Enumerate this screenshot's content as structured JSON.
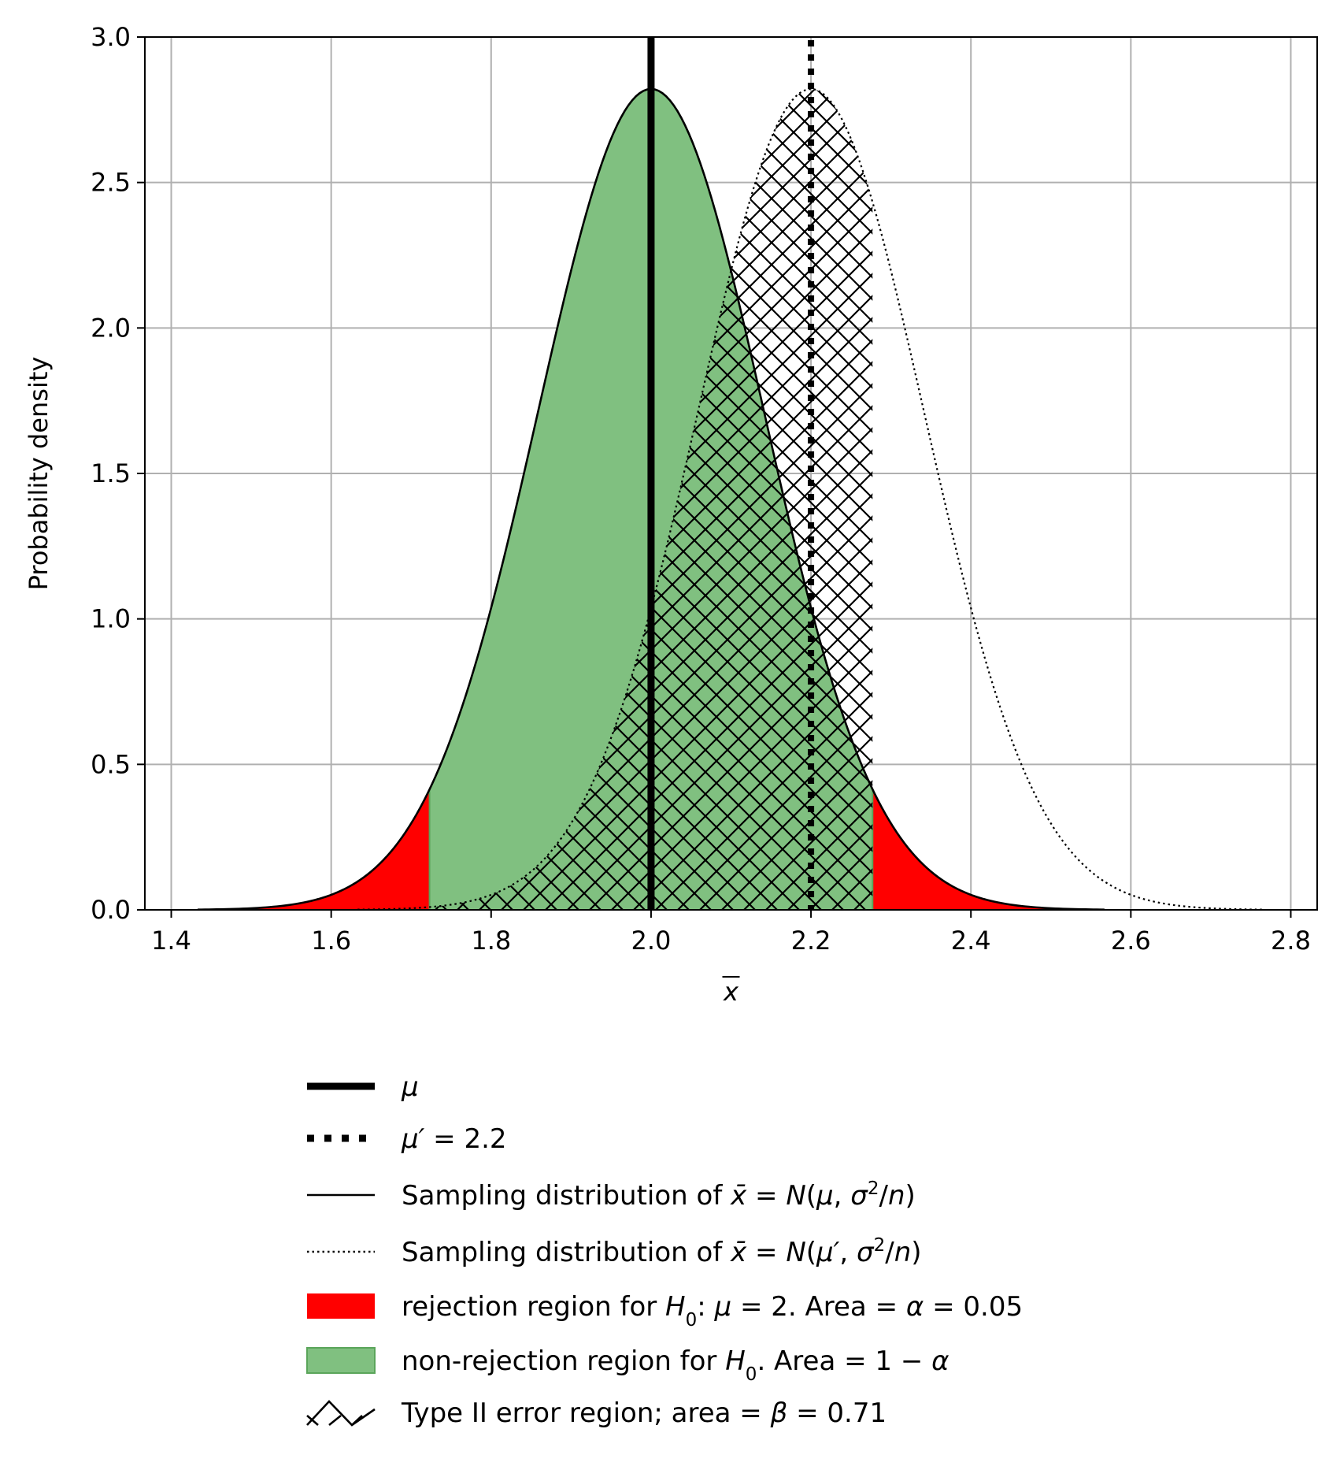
{
  "chart_data": {
    "type": "area",
    "xlabel_symbol": "x",
    "ylabel": "Probability density",
    "xlim": [
      1.367,
      2.833
    ],
    "ylim": [
      0,
      3.0
    ],
    "x_ticks": [
      "1.4",
      "1.6",
      "1.8",
      "2.0",
      "2.2",
      "2.4",
      "2.6",
      "2.8"
    ],
    "x_tick_values": [
      1.4,
      1.6,
      1.8,
      2.0,
      2.2,
      2.4,
      2.6,
      2.8
    ],
    "y_ticks": [
      "0.0",
      "0.5",
      "1.0",
      "1.5",
      "2.0",
      "2.5",
      "3.0"
    ],
    "y_tick_values": [
      0.0,
      0.5,
      1.0,
      1.5,
      2.0,
      2.5,
      3.0
    ],
    "grid": true,
    "legend_position": "below",
    "distributions": {
      "null": {
        "mean": 2.0,
        "sd": 0.1414,
        "x_range": [
          1.433,
          2.567
        ]
      },
      "alternative": {
        "mean": 2.2,
        "sd": 0.1414,
        "x_range": [
          1.633,
          2.767
        ]
      }
    },
    "mu_line_x": 2.0,
    "mu_prime_line_x": 2.2,
    "critical_values": [
      1.723,
      2.277
    ],
    "type2_region": [
      1.723,
      2.277
    ],
    "alpha": 0.05,
    "beta": 0.71,
    "colors": {
      "rejection": "#ff0000",
      "non_rejection": "#80c080",
      "non_rejection_edge": "#5aa55a",
      "line": "#000000",
      "grid": "#b0b0b0"
    },
    "legend": [
      {
        "key": "mu",
        "parts": [
          {
            "t": "μ",
            "i": true
          }
        ]
      },
      {
        "key": "mu_prime",
        "parts": [
          {
            "t": "μ′",
            "i": true
          },
          {
            "t": " = 2.2"
          }
        ]
      },
      {
        "key": "sampling_null",
        "parts": [
          {
            "t": "Sampling distribution of "
          },
          {
            "t": "x̄",
            "i": true
          },
          {
            "t": " = "
          },
          {
            "t": "N",
            "i": true
          },
          {
            "t": "("
          },
          {
            "t": "μ",
            "i": true
          },
          {
            "t": ", "
          },
          {
            "t": "σ",
            "i": true
          },
          {
            "t": "2",
            "sup": true
          },
          {
            "t": "/"
          },
          {
            "t": "n",
            "i": true
          },
          {
            "t": ")"
          }
        ]
      },
      {
        "key": "sampling_alt",
        "parts": [
          {
            "t": "Sampling distribution of "
          },
          {
            "t": "x̄",
            "i": true
          },
          {
            "t": " = "
          },
          {
            "t": "N",
            "i": true
          },
          {
            "t": "("
          },
          {
            "t": "μ′",
            "i": true
          },
          {
            "t": ", "
          },
          {
            "t": "σ",
            "i": true
          },
          {
            "t": "2",
            "sup": true
          },
          {
            "t": "/"
          },
          {
            "t": "n",
            "i": true
          },
          {
            "t": ")"
          }
        ]
      },
      {
        "key": "rejection",
        "parts": [
          {
            "t": "rejection region for "
          },
          {
            "t": "H",
            "i": true
          },
          {
            "t": "0",
            "sub": true
          },
          {
            "t": ": "
          },
          {
            "t": "μ",
            "i": true
          },
          {
            "t": " = 2. Area = "
          },
          {
            "t": "α",
            "i": true
          },
          {
            "t": " = 0.05"
          }
        ]
      },
      {
        "key": "non_rejection",
        "parts": [
          {
            "t": "non-rejection region for "
          },
          {
            "t": "H",
            "i": true
          },
          {
            "t": "0",
            "sub": true
          },
          {
            "t": ". Area = 1 − "
          },
          {
            "t": "α",
            "i": true
          }
        ]
      },
      {
        "key": "type2",
        "parts": [
          {
            "t": "Type II error region; area = "
          },
          {
            "t": "β",
            "i": true
          },
          {
            "t": " = 0.71"
          }
        ]
      }
    ]
  }
}
